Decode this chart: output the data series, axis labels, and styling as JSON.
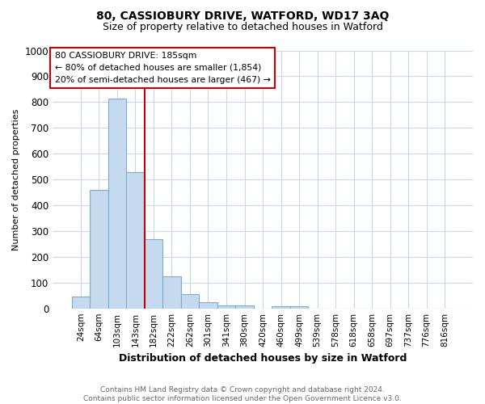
{
  "title": "80, CASSIOBURY DRIVE, WATFORD, WD17 3AQ",
  "subtitle": "Size of property relative to detached houses in Watford",
  "xlabel": "Distribution of detached houses by size in Watford",
  "ylabel": "Number of detached properties",
  "footer1": "Contains HM Land Registry data © Crown copyright and database right 2024.",
  "footer2": "Contains public sector information licensed under the Open Government Licence v3.0.",
  "annotation_line1": "80 CASSIOBURY DRIVE: 185sqm",
  "annotation_line2": "← 80% of detached houses are smaller (1,854)",
  "annotation_line3": "20% of semi-detached houses are larger (467) →",
  "bar_labels": [
    "24sqm",
    "64sqm",
    "103sqm",
    "143sqm",
    "182sqm",
    "222sqm",
    "262sqm",
    "301sqm",
    "341sqm",
    "380sqm",
    "420sqm",
    "460sqm",
    "499sqm",
    "539sqm",
    "578sqm",
    "618sqm",
    "658sqm",
    "697sqm",
    "737sqm",
    "776sqm",
    "816sqm"
  ],
  "bar_values": [
    46,
    460,
    815,
    530,
    270,
    125,
    55,
    25,
    12,
    12,
    0,
    8,
    8,
    0,
    0,
    0,
    0,
    0,
    0,
    0,
    0
  ],
  "bar_color": "#c5d9ef",
  "bar_edge_color": "#7aadd4",
  "vline_x_index": 4,
  "vline_color": "#cc0000",
  "background_color": "#ffffff",
  "grid_color": "#c8d8e8",
  "ylim": [
    0,
    1000
  ],
  "yticks": [
    0,
    100,
    200,
    300,
    400,
    500,
    600,
    700,
    800,
    900,
    1000
  ],
  "annotation_box_color": "#ffffff",
  "annotation_box_edge": "#cc0000",
  "title_fontsize": 10,
  "subtitle_fontsize": 9,
  "ylabel_fontsize": 8,
  "xlabel_fontsize": 9
}
